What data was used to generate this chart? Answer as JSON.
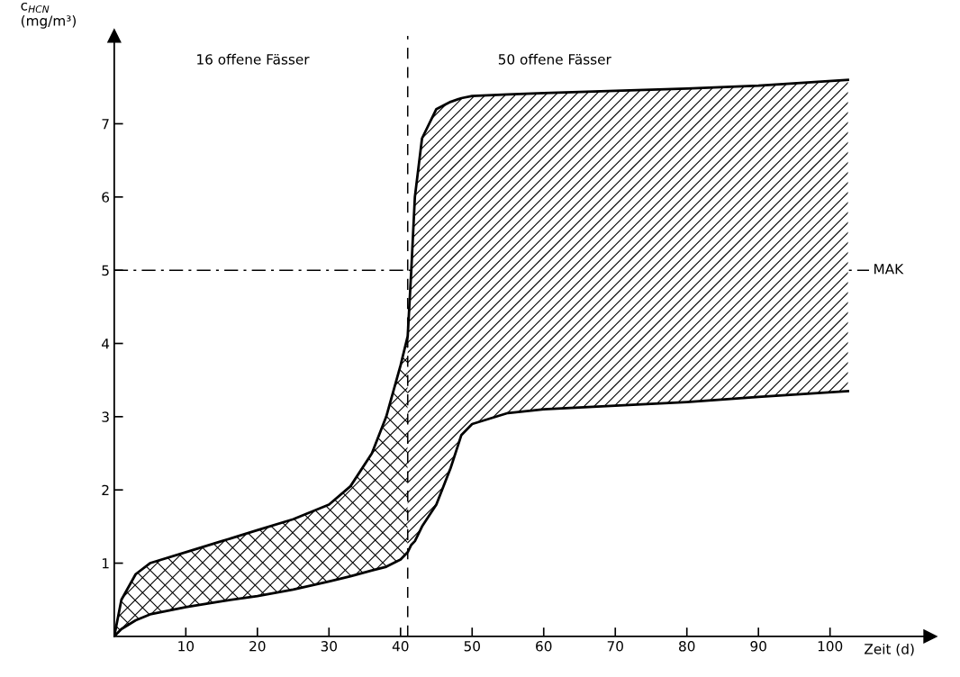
{
  "chart_data": {
    "type": "line",
    "xlabel": "Zeit (d)",
    "ylabel": "c$_{HCN}$\n(mg/m³)",
    "xlim": [
      0,
      114
    ],
    "ylim": [
      0,
      8.2
    ],
    "xticks": [
      10,
      20,
      30,
      40,
      50,
      60,
      70,
      80,
      90,
      100
    ],
    "yticks": [
      1,
      2,
      3,
      4,
      5,
      6,
      7
    ],
    "series": [
      {
        "color": "#000000",
        "x": [
          0,
          1,
          3,
          5,
          10,
          15,
          20,
          25,
          30,
          33,
          36,
          38,
          40,
          41,
          41.5,
          42,
          43,
          45,
          47,
          48.5,
          50,
          55,
          60,
          70,
          80,
          90,
          102.5
        ],
        "values": [
          0,
          0.5,
          0.85,
          1.0,
          1.15,
          1.3,
          1.45,
          1.6,
          1.8,
          2.05,
          2.5,
          3.0,
          3.7,
          4.1,
          5.0,
          6.0,
          6.8,
          7.2,
          7.3,
          7.35,
          7.38,
          7.4,
          7.42,
          7.45,
          7.48,
          7.52,
          7.6
        ]
      },
      {
        "color": "#000000",
        "x": [
          0,
          1,
          3,
          5,
          10,
          15,
          20,
          25,
          30,
          33,
          36,
          38,
          40,
          41,
          41.5,
          42,
          43,
          45,
          47,
          48.5,
          50,
          55,
          60,
          70,
          80,
          90,
          102.5
        ],
        "values": [
          0,
          0.1,
          0.22,
          0.3,
          0.4,
          0.48,
          0.55,
          0.64,
          0.75,
          0.82,
          0.9,
          0.95,
          1.05,
          1.15,
          1.25,
          1.3,
          1.5,
          1.8,
          2.3,
          2.75,
          2.9,
          3.05,
          3.1,
          3.15,
          3.2,
          3.27,
          3.35
        ]
      }
    ],
    "ref_lines": [
      {
        "axis": "y",
        "value": 5,
        "label": "MAK",
        "line_style": "dashdot"
      },
      {
        "axis": "x",
        "value": 41,
        "line_style": "dashed"
      }
    ],
    "annotations": [
      "16 offene Fässer",
      "50 offene Fässer"
    ],
    "grid": false,
    "legend": false
  }
}
